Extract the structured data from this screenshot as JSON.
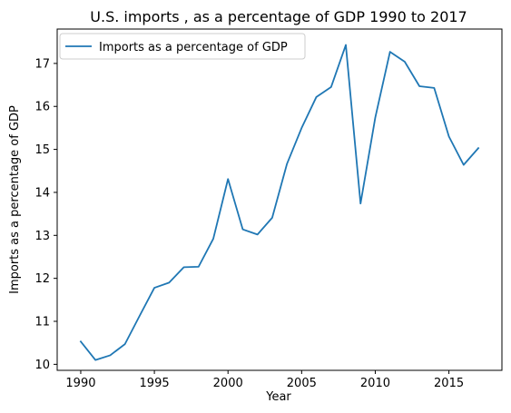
{
  "chart_data": {
    "type": "line",
    "title": "U.S. imports , as a percentage of GDP 1990 to 2017",
    "xlabel": "Year",
    "ylabel": "Imports as a percentage of GDP",
    "xlim": [
      1988.4,
      2018.6
    ],
    "ylim": [
      9.86,
      17.8
    ],
    "xticks": [
      1990,
      1995,
      2000,
      2005,
      2010,
      2015
    ],
    "yticks": [
      10,
      11,
      12,
      13,
      14,
      15,
      16,
      17
    ],
    "grid": false,
    "legend_position": "top-left",
    "series": [
      {
        "name": "Imports as a percentage of GDP",
        "color": "#1f77b4",
        "x": [
          1990,
          1991,
          1992,
          1993,
          1994,
          1995,
          1996,
          1997,
          1998,
          1999,
          2000,
          2001,
          2002,
          2003,
          2004,
          2005,
          2006,
          2007,
          2008,
          2009,
          2010,
          2011,
          2012,
          2013,
          2014,
          2015,
          2016,
          2017
        ],
        "y": [
          10.53,
          10.1,
          10.21,
          10.47,
          11.13,
          11.78,
          11.9,
          12.26,
          12.27,
          12.92,
          14.31,
          13.14,
          13.02,
          13.41,
          14.66,
          15.5,
          16.22,
          16.45,
          17.43,
          13.74,
          15.74,
          17.27,
          17.04,
          16.47,
          16.43,
          15.3,
          14.64,
          15.03
        ]
      }
    ]
  }
}
